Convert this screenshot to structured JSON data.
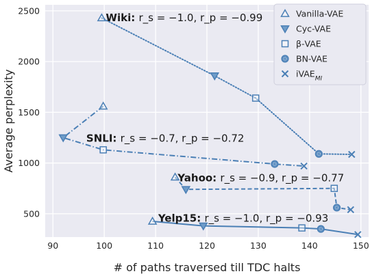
{
  "chart_data": {
    "type": "line",
    "xlabel": "# of paths traversed till TDC halts",
    "ylabel": "Average perplexity",
    "xlim": [
      88.5,
      151.5
    ],
    "ylim": [
      270,
      2560
    ],
    "xticks": [
      90,
      100,
      110,
      120,
      130,
      140,
      150
    ],
    "yticks": [
      500,
      1000,
      1500,
      2000,
      2500
    ],
    "grid": true,
    "color": "#4a7fb5",
    "legend_position": "top-right",
    "methods": [
      {
        "name": "Vanilla-VAE",
        "marker": "triangle-up-open"
      },
      {
        "name": "Cyc-VAE",
        "marker": "triangle-down-filled"
      },
      {
        "name": "β-VAE",
        "marker": "square-open"
      },
      {
        "name": "BN-VAE",
        "marker": "circle-dotted"
      },
      {
        "name": "iVAE_MI",
        "marker": "x"
      }
    ],
    "series": [
      {
        "name": "Wiki",
        "linestyle": "dotted",
        "annotation": {
          "label": "Wiki",
          "stats": "r_s = −1.0, r_p = −0.99",
          "anchor": [
            100.3,
            2400
          ]
        },
        "points": [
          [
            99.5,
            2430
          ],
          [
            121.5,
            1860
          ],
          [
            129.5,
            1640
          ],
          [
            141.8,
            1090
          ],
          [
            148.2,
            1085
          ]
        ]
      },
      {
        "name": "SNLI",
        "linestyle": "dashdot",
        "annotation": {
          "label": "SNLI",
          "stats": "r_s = −0.7, r_p = −0.72",
          "anchor": [
            96.5,
            1210
          ]
        },
        "points": [
          [
            99.8,
            1560
          ],
          [
            92.0,
            1250
          ],
          [
            99.8,
            1130
          ],
          [
            133.2,
            990
          ],
          [
            138.9,
            970
          ]
        ]
      },
      {
        "name": "Yahoo",
        "linestyle": "dashed",
        "annotation": {
          "label": "Yahoo",
          "stats": "r_s = −0.9, r_p = −0.77",
          "anchor": [
            114.3,
            820
          ]
        },
        "points": [
          [
            113.8,
            860
          ],
          [
            115.9,
            740
          ],
          [
            144.8,
            750
          ],
          [
            145.3,
            560
          ],
          [
            148.0,
            540
          ]
        ]
      },
      {
        "name": "Yelp15",
        "linestyle": "solid",
        "annotation": {
          "label": "Yelp15",
          "stats": "r_s = −1.0, r_p = −0.93",
          "anchor": [
            110.5,
            420
          ]
        },
        "points": [
          [
            109.4,
            425
          ],
          [
            119.3,
            380
          ],
          [
            138.5,
            360
          ],
          [
            142.2,
            350
          ],
          [
            149.4,
            295
          ]
        ]
      }
    ]
  }
}
